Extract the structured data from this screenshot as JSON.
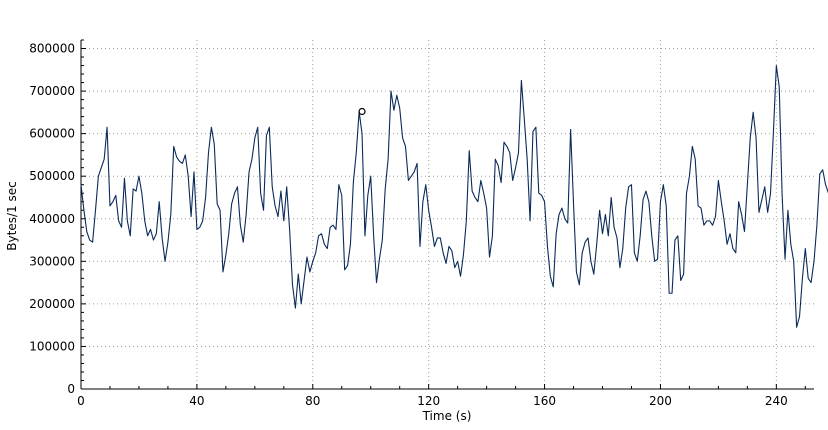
{
  "chart_data": {
    "type": "line",
    "xlabel": "Time (s)",
    "ylabel": "Bytes/1 sec",
    "xlim": [
      0,
      253
    ],
    "ylim": [
      0,
      820000
    ],
    "x_ticks": [
      0,
      40,
      80,
      120,
      160,
      200,
      240
    ],
    "y_ticks": [
      0,
      100000,
      200000,
      300000,
      400000,
      500000,
      600000,
      700000,
      800000
    ],
    "x_tick_labels": [
      "0",
      "40",
      "80",
      "120",
      "160",
      "200",
      "240"
    ],
    "y_tick_labels": [
      "0",
      "100000",
      "200000",
      "300000",
      "400000",
      "500000",
      "600000",
      "700000",
      "800000"
    ],
    "grid": true,
    "line_color": "#0a2a5a",
    "marked_point": {
      "x": 97,
      "y": 652000
    },
    "series": [
      {
        "values": [
          480000,
          420000,
          370000,
          350000,
          345000,
          420000,
          500000,
          520000,
          540000,
          615000,
          430000,
          440000,
          455000,
          395000,
          380000,
          495000,
          395000,
          360000,
          470000,
          465000,
          500000,
          460000,
          395000,
          360000,
          375000,
          350000,
          365000,
          440000,
          355000,
          300000,
          345000,
          410000,
          570000,
          545000,
          535000,
          530000,
          550000,
          500000,
          405000,
          510000,
          375000,
          380000,
          395000,
          450000,
          555000,
          615000,
          575000,
          435000,
          420000,
          275000,
          315000,
          365000,
          435000,
          460000,
          475000,
          385000,
          345000,
          410000,
          510000,
          540000,
          590000,
          615000,
          460000,
          420000,
          595000,
          615000,
          475000,
          430000,
          405000,
          465000,
          395000,
          475000,
          375000,
          245000,
          190000,
          270000,
          200000,
          255000,
          310000,
          275000,
          300000,
          320000,
          360000,
          365000,
          340000,
          330000,
          380000,
          385000,
          375000,
          480000,
          455000,
          280000,
          290000,
          340000,
          485000,
          555000,
          652000,
          600000,
          360000,
          455000,
          500000,
          360000,
          250000,
          305000,
          350000,
          470000,
          540000,
          700000,
          655000,
          690000,
          660000,
          590000,
          570000,
          490000,
          500000,
          510000,
          530000,
          335000,
          440000,
          480000,
          420000,
          380000,
          335000,
          355000,
          355000,
          320000,
          295000,
          335000,
          325000,
          285000,
          300000,
          265000,
          315000,
          395000,
          560000,
          465000,
          450000,
          440000,
          490000,
          460000,
          425000,
          310000,
          360000,
          540000,
          525000,
          485000,
          580000,
          570000,
          555000,
          490000,
          520000,
          555000,
          725000,
          635000,
          540000,
          395000,
          605000,
          615000,
          460000,
          455000,
          440000,
          335000,
          265000,
          240000,
          365000,
          410000,
          425000,
          400000,
          390000,
          610000,
          435000,
          275000,
          245000,
          320000,
          345000,
          355000,
          300000,
          270000,
          340000,
          420000,
          365000,
          410000,
          360000,
          450000,
          380000,
          355000,
          285000,
          330000,
          425000,
          475000,
          480000,
          320000,
          300000,
          360000,
          445000,
          465000,
          440000,
          360000,
          300000,
          305000,
          440000,
          480000,
          430000,
          225000,
          225000,
          350000,
          360000,
          255000,
          270000,
          460000,
          500000,
          570000,
          540000,
          430000,
          425000,
          385000,
          395000,
          395000,
          385000,
          405000,
          490000,
          440000,
          395000,
          340000,
          365000,
          330000,
          320000,
          440000,
          410000,
          370000,
          480000,
          590000,
          650000,
          590000,
          415000,
          445000,
          475000,
          415000,
          460000,
          605000,
          760000,
          710000,
          455000,
          305000,
          420000,
          340000,
          300000,
          145000,
          170000,
          260000,
          330000,
          260000,
          250000,
          300000,
          385000,
          505000,
          515000,
          480000,
          460000
        ]
      }
    ]
  }
}
